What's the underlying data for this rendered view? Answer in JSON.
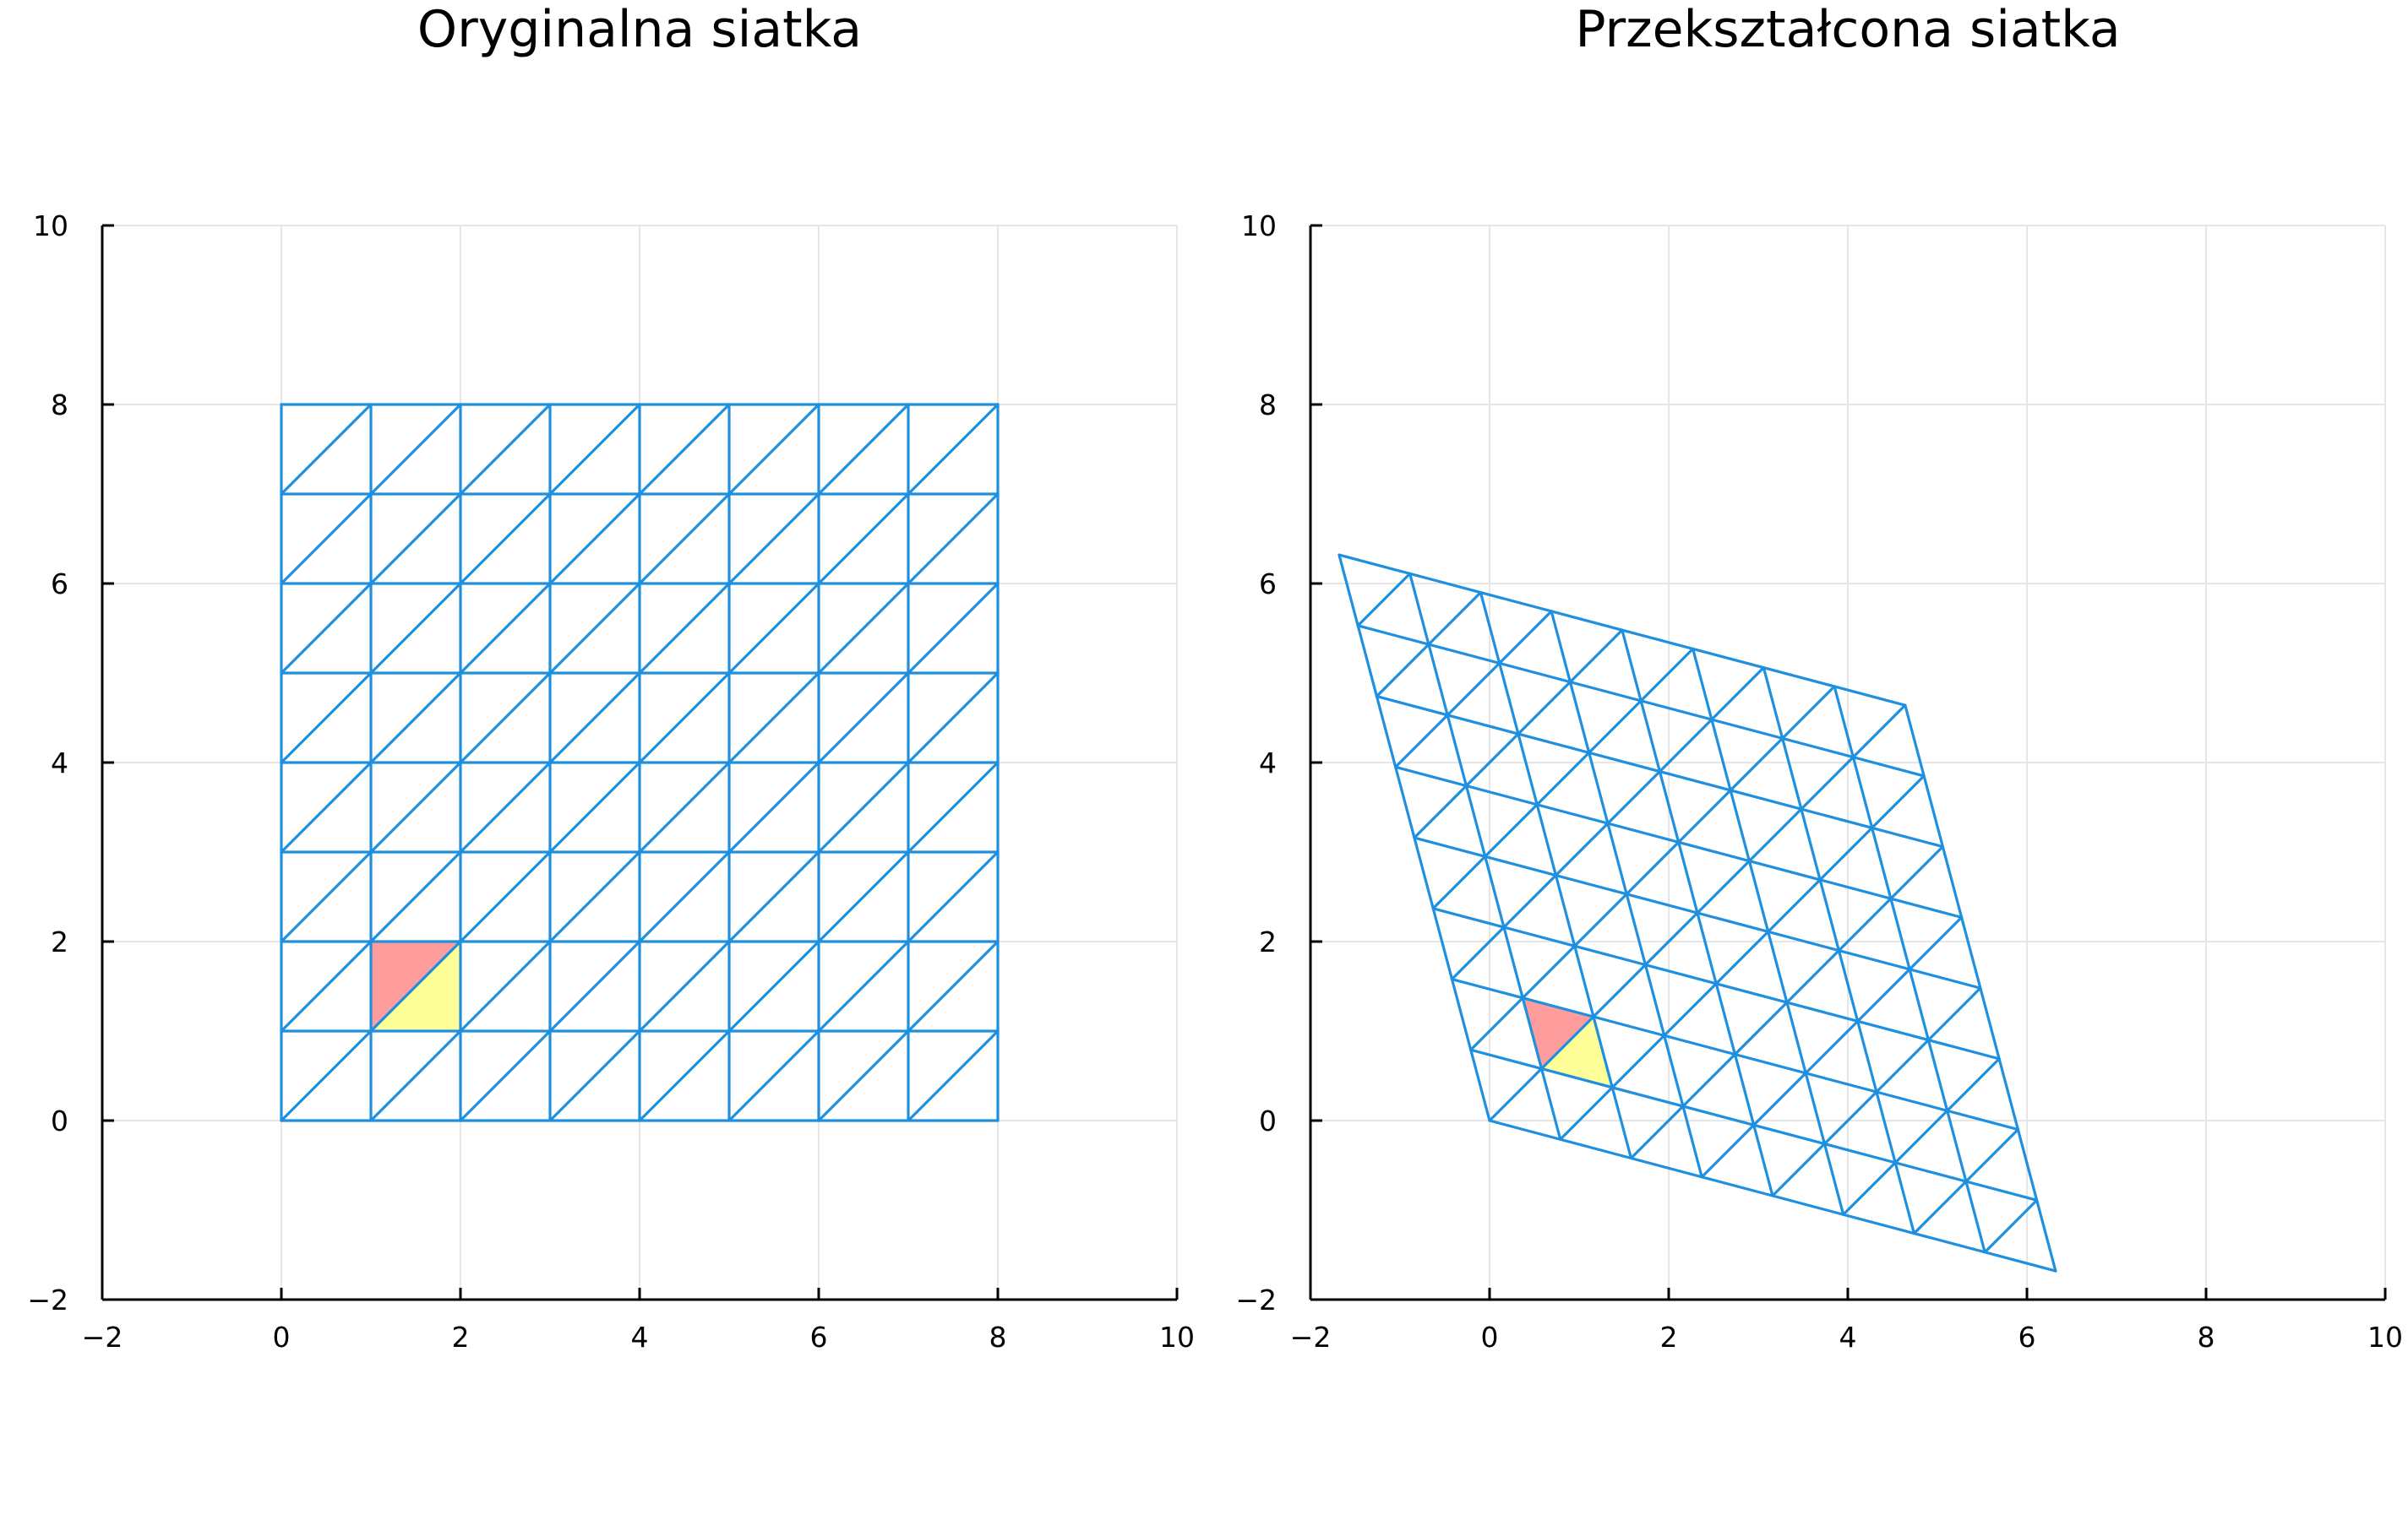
{
  "chart_data": [
    {
      "type": "mesh",
      "title": "Oryginalna siatka",
      "xlim": [
        -2,
        10
      ],
      "ylim": [
        -2,
        10
      ],
      "xticks": [
        -2,
        0,
        2,
        4,
        6,
        8,
        10
      ],
      "yticks": [
        -2,
        0,
        2,
        4,
        6,
        8,
        10
      ],
      "grid": true,
      "mesh": {
        "nx": 8,
        "ny": 8,
        "x0": 0,
        "y0": 0,
        "step": 1,
        "diagonal": "lower-left to upper-right"
      },
      "mesh_color": "#1f8fe0",
      "highlighted_triangles": [
        {
          "vertices": [
            [
              1,
              1
            ],
            [
              1,
              2
            ],
            [
              2,
              2
            ]
          ],
          "color": "#ff9d9d"
        },
        {
          "vertices": [
            [
              1,
              1
            ],
            [
              2,
              1
            ],
            [
              2,
              2
            ]
          ],
          "color": "#ffff99"
        }
      ]
    },
    {
      "type": "mesh",
      "title": "Przekształcona siatka",
      "xlim": [
        -2,
        10
      ],
      "ylim": [
        -2,
        10
      ],
      "xticks": [
        -2,
        0,
        2,
        4,
        6,
        8,
        10
      ],
      "yticks": [
        -2,
        0,
        2,
        4,
        6,
        8,
        10
      ],
      "grid": true,
      "mesh": {
        "nx": 8,
        "ny": 8,
        "x0": 0,
        "y0": 0,
        "step": 1,
        "diagonal": "lower-left to upper-right"
      },
      "transform_matrix": [
        [
          0.79,
          -0.21
        ],
        [
          -0.21,
          0.79
        ]
      ],
      "transform_example": {
        "from": [
          8,
          8
        ],
        "to": [
          4.63,
          4.63
        ]
      },
      "mesh_color": "#1f8fe0",
      "highlighted_triangles": [
        {
          "vertices": [
            [
              1,
              1
            ],
            [
              1,
              2
            ],
            [
              2,
              2
            ]
          ],
          "color": "#ff9d9d"
        },
        {
          "vertices": [
            [
              1,
              1
            ],
            [
              2,
              1
            ],
            [
              2,
              2
            ]
          ],
          "color": "#ffff99"
        }
      ]
    }
  ]
}
